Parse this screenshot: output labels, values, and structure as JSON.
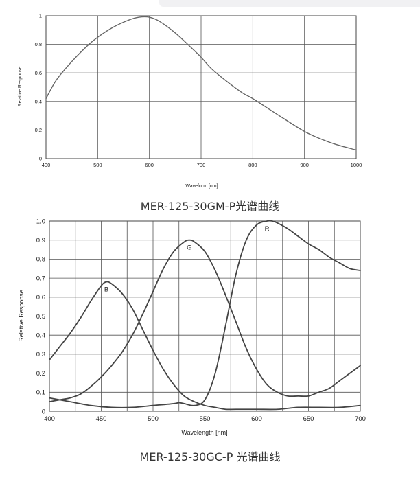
{
  "chart_data": [
    {
      "type": "line",
      "caption": "MER-125-30GM-P光谱曲线",
      "xlabel": "Waveform [nm]",
      "ylabel": "Relative Response",
      "xlim": [
        400,
        1000
      ],
      "ylim": [
        0,
        1
      ],
      "xticks": [
        "400",
        "500",
        "600",
        "700",
        "800",
        "900",
        "1000"
      ],
      "yticks": [
        "0",
        "0.2",
        "0.4",
        "0.6",
        "0.8",
        "1"
      ],
      "grid": true,
      "series": [
        {
          "x": [
            400,
            420,
            450,
            480,
            500,
            530,
            560,
            580,
            600,
            620,
            650,
            680,
            700,
            720,
            750,
            780,
            800,
            830,
            860,
            900,
            930,
            960,
            1000
          ],
          "y": [
            0.42,
            0.55,
            0.68,
            0.79,
            0.85,
            0.92,
            0.97,
            0.99,
            0.99,
            0.96,
            0.88,
            0.78,
            0.71,
            0.63,
            0.54,
            0.46,
            0.42,
            0.35,
            0.28,
            0.19,
            0.14,
            0.1,
            0.06
          ]
        }
      ]
    },
    {
      "type": "line",
      "caption": "MER-125-30GC-P 光谱曲线",
      "xlabel": "Wavelength [nm]",
      "ylabel": "Relative Response",
      "xlim": [
        400,
        700
      ],
      "ylim": [
        0,
        1.0
      ],
      "xticks": [
        "400",
        "450",
        "500",
        "550",
        "600",
        "650",
        "700"
      ],
      "yticks": [
        "0",
        "0.1",
        "0.2",
        "0.3",
        "0.4",
        "0.5",
        "0.6",
        "0.7",
        "0.8",
        "0.9",
        "1.0"
      ],
      "grid": true,
      "series": [
        {
          "name": "B",
          "x": [
            400,
            410,
            420,
            430,
            440,
            450,
            455,
            460,
            470,
            480,
            490,
            500,
            510,
            520,
            530,
            540,
            550,
            560,
            570,
            580,
            600,
            620,
            640,
            660,
            680,
            700
          ],
          "y": [
            0.27,
            0.34,
            0.41,
            0.49,
            0.58,
            0.66,
            0.68,
            0.67,
            0.62,
            0.54,
            0.43,
            0.32,
            0.22,
            0.14,
            0.08,
            0.05,
            0.03,
            0.02,
            0.01,
            0.01,
            0.01,
            0.01,
            0.02,
            0.02,
            0.02,
            0.03
          ]
        },
        {
          "name": "G",
          "x": [
            400,
            410,
            420,
            430,
            440,
            450,
            460,
            470,
            480,
            490,
            500,
            510,
            520,
            530,
            535,
            540,
            550,
            560,
            570,
            580,
            590,
            600,
            610,
            620,
            630,
            640,
            650,
            660,
            670,
            680,
            690,
            700
          ],
          "y": [
            0.05,
            0.06,
            0.07,
            0.09,
            0.13,
            0.18,
            0.24,
            0.31,
            0.4,
            0.51,
            0.63,
            0.75,
            0.84,
            0.89,
            0.9,
            0.89,
            0.84,
            0.74,
            0.61,
            0.47,
            0.33,
            0.22,
            0.14,
            0.1,
            0.08,
            0.08,
            0.08,
            0.1,
            0.12,
            0.16,
            0.2,
            0.24
          ]
        },
        {
          "name": "R",
          "x": [
            400,
            420,
            440,
            460,
            480,
            500,
            520,
            525,
            530,
            540,
            550,
            560,
            570,
            580,
            590,
            600,
            610,
            615,
            620,
            630,
            640,
            650,
            660,
            670,
            680,
            690,
            700
          ],
          "y": [
            0.07,
            0.05,
            0.03,
            0.02,
            0.02,
            0.03,
            0.04,
            0.045,
            0.04,
            0.03,
            0.06,
            0.2,
            0.45,
            0.72,
            0.9,
            0.98,
            1.0,
            1.0,
            0.99,
            0.96,
            0.92,
            0.88,
            0.85,
            0.81,
            0.78,
            0.75,
            0.74
          ]
        }
      ]
    }
  ]
}
